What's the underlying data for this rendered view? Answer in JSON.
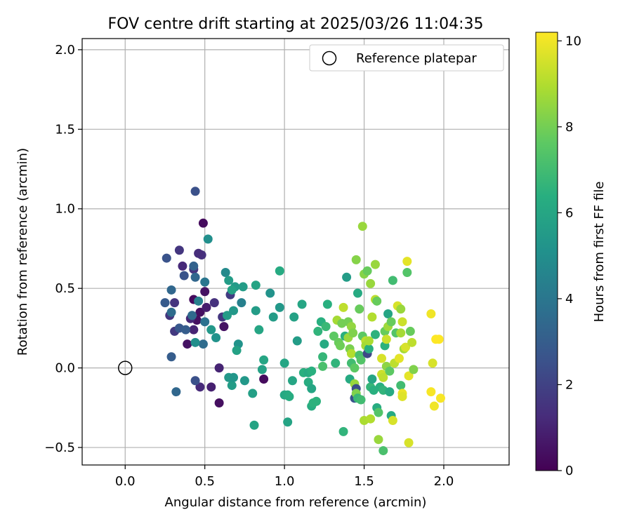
{
  "chart_data": {
    "type": "scatter",
    "title": "FOV centre drift starting at 2025/03/26 11:04:35",
    "xlabel": "Angular distance from reference (arcmin)",
    "ylabel": "Rotation from reference (arcmin)",
    "xlim": [
      -0.27,
      2.41
    ],
    "ylim": [
      -0.61,
      2.07
    ],
    "xticks": [
      "0.0",
      "0.5",
      "1.0",
      "1.5",
      "2.0"
    ],
    "xtick_values": [
      0.0,
      0.5,
      1.0,
      1.5,
      2.0
    ],
    "yticks": [
      "−0.5",
      "0.0",
      "0.5",
      "1.0",
      "1.5",
      "2.0"
    ],
    "ytick_values": [
      -0.5,
      0.0,
      0.5,
      1.0,
      1.5,
      2.0
    ],
    "grid": true,
    "legend": {
      "position": "top-right",
      "entries": [
        {
          "label": "Reference platepar",
          "marker": "open-circle"
        }
      ]
    },
    "reference_point": {
      "x": 0.0,
      "y": 0.0
    },
    "colorbar": {
      "label": "Hours from first FF file",
      "colormap": "viridis",
      "range": [
        0,
        10.2
      ],
      "ticks": [
        "0",
        "2",
        "4",
        "6",
        "8",
        "10"
      ],
      "tick_values": [
        0,
        2,
        4,
        6,
        8,
        10
      ]
    },
    "points": [
      {
        "x": 0.49,
        "y": 0.91,
        "h": 0.3
      },
      {
        "x": 0.43,
        "y": 0.43,
        "h": 0.3
      },
      {
        "x": 0.47,
        "y": 0.35,
        "h": 0.4
      },
      {
        "x": 0.45,
        "y": 0.3,
        "h": 0.4
      },
      {
        "x": 0.5,
        "y": 0.48,
        "h": 0.5
      },
      {
        "x": 0.62,
        "y": 0.26,
        "h": 0.5
      },
      {
        "x": 0.59,
        "y": -0.22,
        "h": 0.4
      },
      {
        "x": 0.87,
        "y": -0.07,
        "h": 0.3
      },
      {
        "x": 0.39,
        "y": 0.15,
        "h": 0.5
      },
      {
        "x": 0.51,
        "y": 0.38,
        "h": 0.8
      },
      {
        "x": 0.59,
        "y": 0.0,
        "h": 1.0
      },
      {
        "x": 0.54,
        "y": -0.12,
        "h": 0.9
      },
      {
        "x": 0.47,
        "y": -0.12,
        "h": 1.2
      },
      {
        "x": 0.43,
        "y": 0.24,
        "h": 1.0
      },
      {
        "x": 0.36,
        "y": 0.64,
        "h": 1.2
      },
      {
        "x": 0.48,
        "y": 0.71,
        "h": 1.4
      },
      {
        "x": 0.34,
        "y": 0.74,
        "h": 1.6
      },
      {
        "x": 0.46,
        "y": 0.72,
        "h": 1.3
      },
      {
        "x": 0.41,
        "y": 0.31,
        "h": 1.1
      },
      {
        "x": 0.56,
        "y": 0.41,
        "h": 1.4
      },
      {
        "x": 0.31,
        "y": 0.41,
        "h": 1.5
      },
      {
        "x": 0.28,
        "y": 0.33,
        "h": 1.6
      },
      {
        "x": 0.31,
        "y": 0.23,
        "h": 1.7
      },
      {
        "x": 0.61,
        "y": 0.32,
        "h": 1.6
      },
      {
        "x": 0.66,
        "y": 0.46,
        "h": 1.8
      },
      {
        "x": 0.43,
        "y": 0.62,
        "h": 1.5
      },
      {
        "x": 0.44,
        "y": 1.11,
        "h": 2.5
      },
      {
        "x": 0.26,
        "y": 0.69,
        "h": 2.6
      },
      {
        "x": 0.37,
        "y": 0.58,
        "h": 2.6
      },
      {
        "x": 0.44,
        "y": -0.08,
        "h": 2.5
      },
      {
        "x": 0.32,
        "y": -0.15,
        "h": 3.4
      },
      {
        "x": 0.29,
        "y": 0.07,
        "h": 3.0
      },
      {
        "x": 0.25,
        "y": 0.41,
        "h": 2.9
      },
      {
        "x": 0.29,
        "y": 0.49,
        "h": 3.4
      },
      {
        "x": 0.43,
        "y": 0.64,
        "h": 3.2
      },
      {
        "x": 0.34,
        "y": 0.25,
        "h": 2.8
      },
      {
        "x": 0.38,
        "y": 0.24,
        "h": 3.0
      },
      {
        "x": 0.49,
        "y": 0.15,
        "h": 3.6
      },
      {
        "x": 0.5,
        "y": 0.54,
        "h": 4.0
      },
      {
        "x": 0.5,
        "y": 0.29,
        "h": 3.8
      },
      {
        "x": 0.29,
        "y": 0.35,
        "h": 3.6
      },
      {
        "x": 0.44,
        "y": 0.57,
        "h": 3.4
      },
      {
        "x": 0.42,
        "y": 0.33,
        "h": 3.5
      },
      {
        "x": 0.46,
        "y": 0.42,
        "h": 4.4
      },
      {
        "x": 0.63,
        "y": 0.6,
        "h": 4.8
      },
      {
        "x": 0.73,
        "y": 0.41,
        "h": 4.4
      },
      {
        "x": 0.52,
        "y": 0.81,
        "h": 5.0
      },
      {
        "x": 0.44,
        "y": 0.16,
        "h": 5.0
      },
      {
        "x": 0.54,
        "y": 0.24,
        "h": 5.4
      },
      {
        "x": 0.57,
        "y": 0.19,
        "h": 5.2
      },
      {
        "x": 0.64,
        "y": 0.33,
        "h": 5.6
      },
      {
        "x": 0.65,
        "y": 0.55,
        "h": 5.6
      },
      {
        "x": 0.69,
        "y": 0.51,
        "h": 5.5
      },
      {
        "x": 0.67,
        "y": 0.49,
        "h": 5.8
      },
      {
        "x": 0.68,
        "y": 0.36,
        "h": 5.4
      },
      {
        "x": 0.71,
        "y": 0.15,
        "h": 5.2
      },
      {
        "x": 0.74,
        "y": 0.51,
        "h": 5.6
      },
      {
        "x": 0.75,
        "y": -0.08,
        "h": 5.4
      },
      {
        "x": 0.7,
        "y": 0.11,
        "h": 5.8
      },
      {
        "x": 0.67,
        "y": -0.11,
        "h": 5.6
      },
      {
        "x": 0.65,
        "y": -0.06,
        "h": 5.4
      },
      {
        "x": 0.68,
        "y": -0.06,
        "h": 5.3
      },
      {
        "x": 0.81,
        "y": -0.36,
        "h": 5.9
      },
      {
        "x": 0.8,
        "y": -0.16,
        "h": 5.7
      },
      {
        "x": 0.84,
        "y": 0.24,
        "h": 6.0
      },
      {
        "x": 0.86,
        "y": -0.01,
        "h": 5.8
      },
      {
        "x": 0.87,
        "y": 0.05,
        "h": 6.0
      },
      {
        "x": 0.82,
        "y": 0.36,
        "h": 5.6
      },
      {
        "x": 0.82,
        "y": 0.52,
        "h": 5.9
      },
      {
        "x": 0.91,
        "y": 0.47,
        "h": 5.2
      },
      {
        "x": 0.93,
        "y": 0.32,
        "h": 5.6
      },
      {
        "x": 0.97,
        "y": 0.38,
        "h": 5.4
      },
      {
        "x": 0.97,
        "y": 0.61,
        "h": 6.2
      },
      {
        "x": 1.0,
        "y": 0.03,
        "h": 6.0
      },
      {
        "x": 1.0,
        "y": -0.17,
        "h": 6.1
      },
      {
        "x": 1.02,
        "y": -0.17,
        "h": 6.2
      },
      {
        "x": 1.03,
        "y": -0.18,
        "h": 6.3
      },
      {
        "x": 1.02,
        "y": -0.34,
        "h": 5.9
      },
      {
        "x": 1.05,
        "y": -0.08,
        "h": 6.0
      },
      {
        "x": 1.06,
        "y": 0.32,
        "h": 5.8
      },
      {
        "x": 1.08,
        "y": 0.17,
        "h": 5.6
      },
      {
        "x": 1.11,
        "y": 0.4,
        "h": 6.0
      },
      {
        "x": 1.12,
        "y": -0.03,
        "h": 6.4
      },
      {
        "x": 1.15,
        "y": -0.03,
        "h": 6.2
      },
      {
        "x": 1.15,
        "y": -0.09,
        "h": 6.3
      },
      {
        "x": 1.17,
        "y": -0.02,
        "h": 6.4
      },
      {
        "x": 1.17,
        "y": -0.13,
        "h": 6.0
      },
      {
        "x": 1.17,
        "y": -0.24,
        "h": 6.3
      },
      {
        "x": 1.18,
        "y": -0.22,
        "h": 6.5
      },
      {
        "x": 1.2,
        "y": -0.21,
        "h": 6.5
      },
      {
        "x": 1.21,
        "y": 0.23,
        "h": 6.6
      },
      {
        "x": 1.23,
        "y": 0.29,
        "h": 6.4
      },
      {
        "x": 1.24,
        "y": 0.07,
        "h": 6.7
      },
      {
        "x": 1.24,
        "y": 0.01,
        "h": 7.2
      },
      {
        "x": 1.25,
        "y": 0.15,
        "h": 6.2
      },
      {
        "x": 1.26,
        "y": 0.26,
        "h": 6.8
      },
      {
        "x": 1.27,
        "y": 0.4,
        "h": 6.4
      },
      {
        "x": 1.31,
        "y": 0.2,
        "h": 7.6
      },
      {
        "x": 1.32,
        "y": 0.03,
        "h": 6.6
      },
      {
        "x": 1.33,
        "y": 0.3,
        "h": 8.8
      },
      {
        "x": 1.34,
        "y": 0.16,
        "h": 7.8
      },
      {
        "x": 1.35,
        "y": 0.14,
        "h": 7.9
      },
      {
        "x": 1.36,
        "y": 0.28,
        "h": 8.0
      },
      {
        "x": 1.37,
        "y": 0.38,
        "h": 9.2
      },
      {
        "x": 1.37,
        "y": -0.4,
        "h": 6.6
      },
      {
        "x": 1.38,
        "y": 0.2,
        "h": 6.4
      },
      {
        "x": 1.39,
        "y": 0.57,
        "h": 5.6
      },
      {
        "x": 1.4,
        "y": 0.29,
        "h": 8.0
      },
      {
        "x": 1.4,
        "y": 0.19,
        "h": 8.6
      },
      {
        "x": 1.41,
        "y": 0.12,
        "h": 8.1
      },
      {
        "x": 1.41,
        "y": -0.07,
        "h": 6.2
      },
      {
        "x": 1.42,
        "y": 0.03,
        "h": 7.0
      },
      {
        "x": 1.42,
        "y": 0.09,
        "h": 9.0
      },
      {
        "x": 1.42,
        "y": 0.26,
        "h": 8.5
      },
      {
        "x": 1.43,
        "y": 0.22,
        "h": 8.2
      },
      {
        "x": 1.44,
        "y": 0.0,
        "h": 7.6
      },
      {
        "x": 1.44,
        "y": -0.1,
        "h": 8.6
      },
      {
        "x": 1.44,
        "y": -0.19,
        "h": 2.6
      },
      {
        "x": 1.45,
        "y": -0.13,
        "h": 2.4
      },
      {
        "x": 1.45,
        "y": -0.16,
        "h": 8.2
      },
      {
        "x": 1.45,
        "y": 0.68,
        "h": 8.3
      },
      {
        "x": 1.46,
        "y": -0.19,
        "h": 6.8
      },
      {
        "x": 1.46,
        "y": 0.47,
        "h": 6.2
      },
      {
        "x": 1.47,
        "y": 0.37,
        "h": 7.8
      },
      {
        "x": 1.47,
        "y": 0.08,
        "h": 7.2
      },
      {
        "x": 1.48,
        "y": 0.05,
        "h": 7.4
      },
      {
        "x": 1.48,
        "y": -0.2,
        "h": 7.0
      },
      {
        "x": 1.49,
        "y": 0.89,
        "h": 8.6
      },
      {
        "x": 1.49,
        "y": 0.2,
        "h": 7.6
      },
      {
        "x": 1.5,
        "y": 0.59,
        "h": 8.3
      },
      {
        "x": 1.5,
        "y": -0.33,
        "h": 8.9
      },
      {
        "x": 1.51,
        "y": 0.17,
        "h": 9.2
      },
      {
        "x": 1.51,
        "y": 0.14,
        "h": 8.8
      },
      {
        "x": 1.52,
        "y": 0.61,
        "h": 7.8
      },
      {
        "x": 1.52,
        "y": 0.09,
        "h": 2.2
      },
      {
        "x": 1.53,
        "y": 0.12,
        "h": 6.4
      },
      {
        "x": 1.53,
        "y": 0.17,
        "h": 8.9
      },
      {
        "x": 1.54,
        "y": -0.32,
        "h": 9.0
      },
      {
        "x": 1.54,
        "y": 0.53,
        "h": 8.6
      },
      {
        "x": 1.54,
        "y": -0.12,
        "h": 6.7
      },
      {
        "x": 1.55,
        "y": 0.32,
        "h": 9.0
      },
      {
        "x": 1.55,
        "y": -0.07,
        "h": 6.0
      },
      {
        "x": 1.56,
        "y": -0.14,
        "h": 6.4
      },
      {
        "x": 1.57,
        "y": 0.21,
        "h": 6.5
      },
      {
        "x": 1.57,
        "y": 0.65,
        "h": 8.6
      },
      {
        "x": 1.57,
        "y": 0.43,
        "h": 9.2
      },
      {
        "x": 1.58,
        "y": -0.25,
        "h": 6.3
      },
      {
        "x": 1.58,
        "y": 0.42,
        "h": 7.8
      },
      {
        "x": 1.59,
        "y": -0.45,
        "h": 8.6
      },
      {
        "x": 1.59,
        "y": -0.28,
        "h": 7.4
      },
      {
        "x": 1.6,
        "y": -0.12,
        "h": 6.4
      },
      {
        "x": 1.61,
        "y": -0.04,
        "h": 9.4
      },
      {
        "x": 1.61,
        "y": 0.06,
        "h": 9.6
      },
      {
        "x": 1.62,
        "y": -0.52,
        "h": 7.2
      },
      {
        "x": 1.62,
        "y": -0.14,
        "h": 6.6
      },
      {
        "x": 1.62,
        "y": -0.06,
        "h": 9.2
      },
      {
        "x": 1.63,
        "y": 0.23,
        "h": 7.8
      },
      {
        "x": 1.63,
        "y": 0.14,
        "h": 6.5
      },
      {
        "x": 1.64,
        "y": 0.18,
        "h": 9.4
      },
      {
        "x": 1.64,
        "y": 0.01,
        "h": 8.4
      },
      {
        "x": 1.65,
        "y": 0.26,
        "h": 8.7
      },
      {
        "x": 1.65,
        "y": 0.34,
        "h": 6.0
      },
      {
        "x": 1.66,
        "y": -0.02,
        "h": 7.6
      },
      {
        "x": 1.66,
        "y": -0.15,
        "h": 6.2
      },
      {
        "x": 1.67,
        "y": 0.29,
        "h": 7.8
      },
      {
        "x": 1.67,
        "y": -0.3,
        "h": 6.2
      },
      {
        "x": 1.68,
        "y": -0.33,
        "h": 9.6
      },
      {
        "x": 1.68,
        "y": 0.55,
        "h": 7.0
      },
      {
        "x": 1.69,
        "y": 0.03,
        "h": 9.2
      },
      {
        "x": 1.7,
        "y": 0.22,
        "h": 7.4
      },
      {
        "x": 1.71,
        "y": 0.39,
        "h": 9.6
      },
      {
        "x": 1.72,
        "y": 0.06,
        "h": 9.8
      },
      {
        "x": 1.73,
        "y": 0.22,
        "h": 8.8
      },
      {
        "x": 1.73,
        "y": -0.11,
        "h": 7.0
      },
      {
        "x": 1.73,
        "y": 0.37,
        "h": 8.6
      },
      {
        "x": 1.74,
        "y": -0.16,
        "h": 9.9
      },
      {
        "x": 1.74,
        "y": 0.29,
        "h": 9.4
      },
      {
        "x": 1.74,
        "y": -0.18,
        "h": 9.7
      },
      {
        "x": 1.75,
        "y": 0.12,
        "h": 8.8
      },
      {
        "x": 1.76,
        "y": 0.13,
        "h": 9.6
      },
      {
        "x": 1.77,
        "y": 0.67,
        "h": 9.8
      },
      {
        "x": 1.77,
        "y": 0.6,
        "h": 7.4
      },
      {
        "x": 1.78,
        "y": -0.47,
        "h": 9.6
      },
      {
        "x": 1.78,
        "y": -0.05,
        "h": 9.8
      },
      {
        "x": 1.79,
        "y": 0.23,
        "h": 7.8
      },
      {
        "x": 1.8,
        "y": 0.16,
        "h": 9.2
      },
      {
        "x": 1.81,
        "y": -0.01,
        "h": 8.2
      },
      {
        "x": 1.92,
        "y": 0.34,
        "h": 10.0
      },
      {
        "x": 1.92,
        "y": -0.15,
        "h": 10.1
      },
      {
        "x": 1.93,
        "y": 0.03,
        "h": 9.6
      },
      {
        "x": 1.94,
        "y": -0.24,
        "h": 10.0
      },
      {
        "x": 1.95,
        "y": 0.18,
        "h": 10.2
      },
      {
        "x": 1.97,
        "y": 0.18,
        "h": 10.2
      },
      {
        "x": 1.98,
        "y": -0.19,
        "h": 10.1
      }
    ]
  }
}
